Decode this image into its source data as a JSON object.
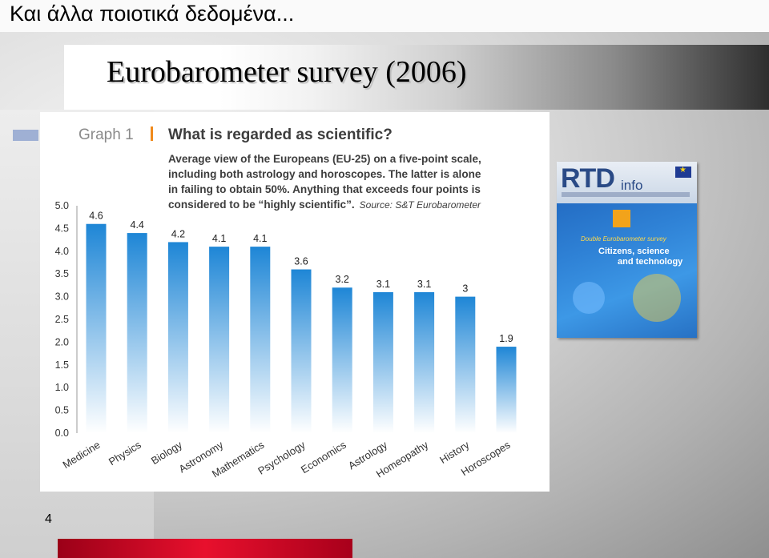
{
  "slide": {
    "heading": "Και άλλα ποιοτικά δεδομένα...",
    "title": "Eurobarometer survey (2006)",
    "page_number": "4"
  },
  "graph": {
    "graph_label": "Graph 1",
    "question": "What is regarded as scientific?",
    "description_lines": [
      "Average view of the Europeans (EU-25) on a five-point scale,",
      "including both astrology and horoscopes. The latter is alone",
      "in failing to obtain 50%. Anything that exceeds four points is",
      "considered to be “highly scientific”."
    ],
    "source": "Source: S&T Eurobarometer",
    "bar_color_top": "#1e86d6",
    "bar_color_bottom": "#ffffff"
  },
  "chart_data": {
    "type": "bar",
    "categories": [
      "Medicine",
      "Physics",
      "Biology",
      "Astronomy",
      "Mathematics",
      "Psychology",
      "Economics",
      "Astrology",
      "Homeopathy",
      "History",
      "Horoscopes"
    ],
    "values": [
      4.6,
      4.4,
      4.2,
      4.1,
      4.1,
      3.6,
      3.2,
      3.1,
      3.1,
      3,
      1.9
    ],
    "value_labels": [
      "4.6",
      "4.4",
      "4.2",
      "4.1",
      "4.1",
      "3.6",
      "3.2",
      "3.1",
      "3.1",
      "3",
      "1.9"
    ],
    "y_ticks": [
      "0.0",
      "0.5",
      "1.0",
      "1.5",
      "2.0",
      "2.5",
      "3.0",
      "3.5",
      "4.0",
      "4.5",
      "5.0"
    ],
    "ylim": [
      0,
      5
    ],
    "grid": false
  },
  "cover": {
    "brand": "RTD",
    "brand_suffix": "info",
    "survey": "Double Eurobarometer survey",
    "line1": "Citizens, science",
    "line2": "and technology"
  }
}
